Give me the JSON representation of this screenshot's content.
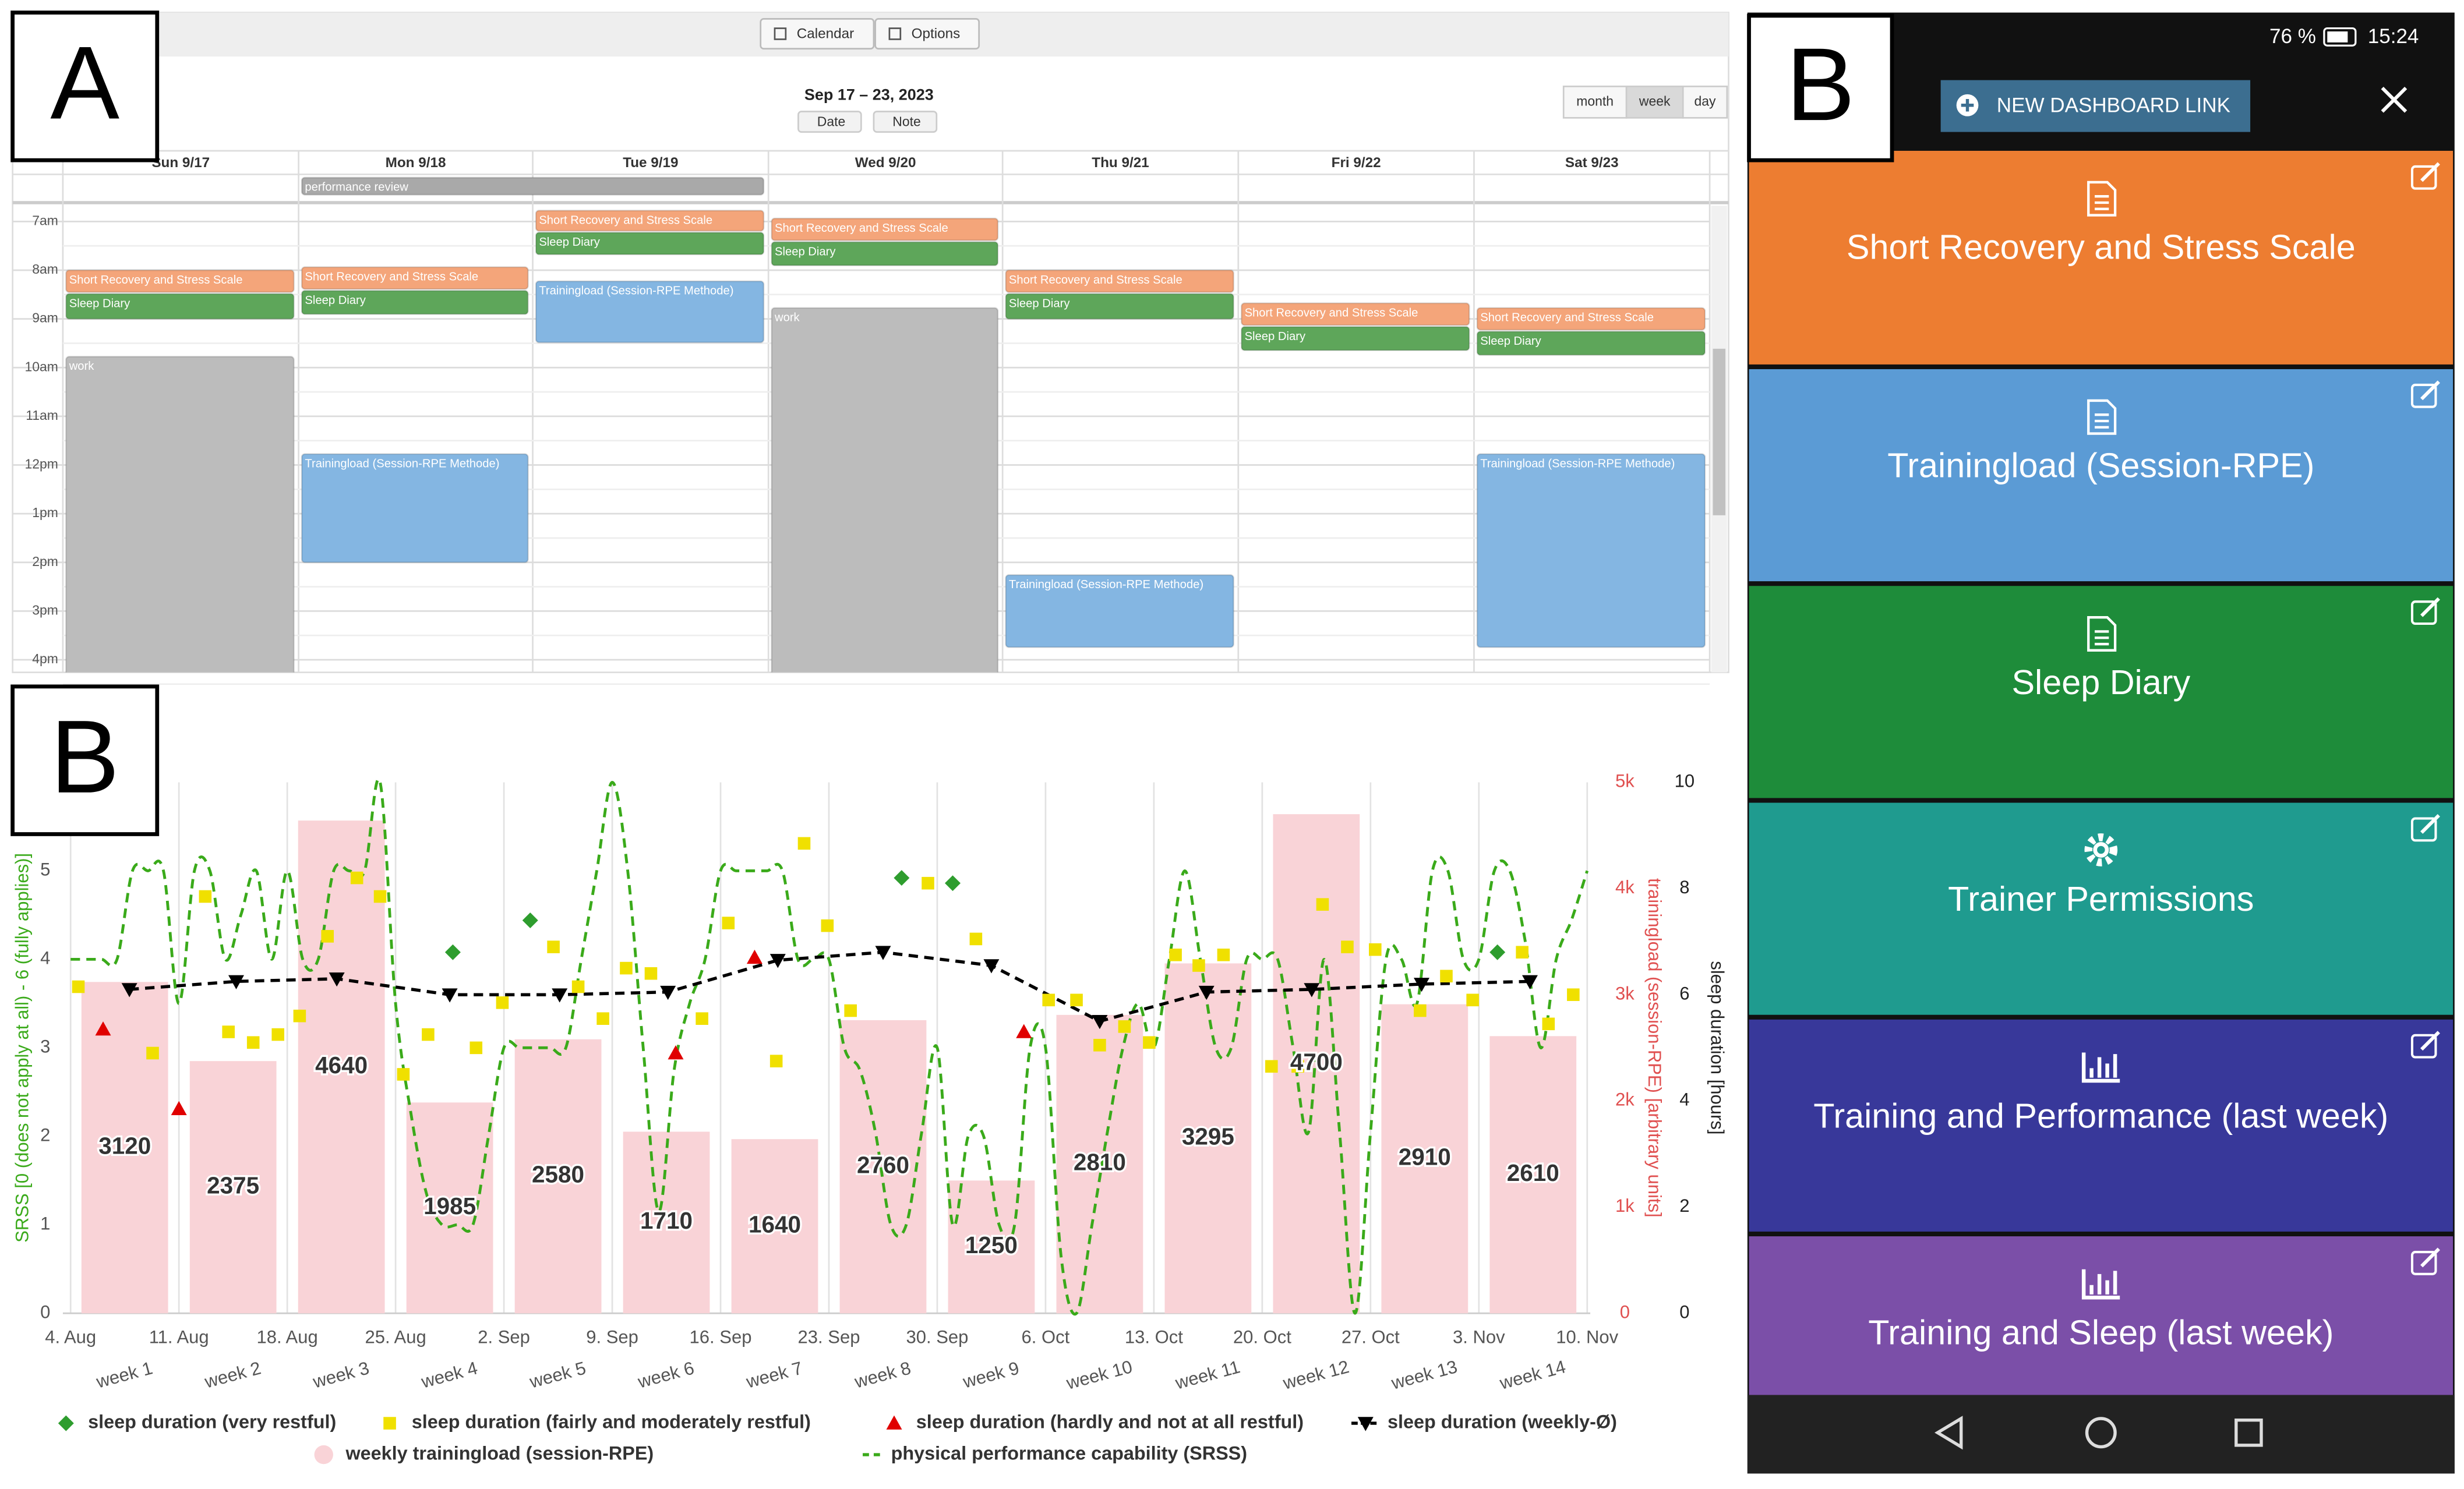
{
  "panel_labels": [
    "A",
    "B",
    "B"
  ],
  "calendar": {
    "toolbar": [
      "Calendar",
      "Options"
    ],
    "range": "Sep 17 – 23, 2023",
    "buttons": [
      "Date",
      "Note"
    ],
    "views": [
      "month",
      "week",
      "day"
    ],
    "days": [
      "Sun 9/17",
      "Mon 9/18",
      "Tue 9/19",
      "Wed 9/20",
      "Thu 9/21",
      "Fri 9/22",
      "Sat 9/23"
    ],
    "times": [
      "7am",
      "8am",
      "9am",
      "10am",
      "11am",
      "12pm",
      "1pm",
      "2pm",
      "3pm",
      "4pm"
    ],
    "events": [
      {
        "label": "performance review",
        "color": "#a9a9a9"
      },
      {
        "label": "Short Recovery and Stress Scale",
        "color": "#f4a57a"
      },
      {
        "label": "Sleep Diary",
        "color": "#5ea65a"
      },
      {
        "label": "work",
        "color": "#bcbcbc"
      },
      {
        "label": "Short Recovery and Stress Scale",
        "color": "#f4a57a"
      },
      {
        "label": "Sleep Diary",
        "color": "#5ea65a"
      },
      {
        "label": "Trainingload (Session-RPE Methode)",
        "color": "#84b6e2"
      },
      {
        "label": "Short Recovery and Stress Scale",
        "color": "#f4a57a"
      },
      {
        "label": "Sleep Diary",
        "color": "#5ea65a"
      },
      {
        "label": "Trainingload (Session-RPE Methode)",
        "color": "#84b6e2"
      },
      {
        "label": "Short Recovery and Stress Scale",
        "color": "#f4a57a"
      },
      {
        "label": "Sleep Diary",
        "color": "#5ea65a"
      },
      {
        "label": "work",
        "color": "#bcbcbc"
      },
      {
        "label": "Short Recovery and Stress Scale",
        "color": "#f4a57a"
      },
      {
        "label": "Sleep Diary",
        "color": "#5ea65a"
      },
      {
        "label": "Trainingload (Session-RPE Methode)",
        "color": "#84b6e2"
      },
      {
        "label": "Short Recovery and Stress Scale",
        "color": "#f4a57a"
      },
      {
        "label": "Sleep Diary",
        "color": "#5ea65a"
      },
      {
        "label": "Short Recovery and Stress Scale",
        "color": "#f4a57a"
      },
      {
        "label": "Sleep Diary",
        "color": "#5ea65a"
      },
      {
        "label": "Trainingload (Session-RPE Methode)",
        "color": "#84b6e2"
      }
    ]
  },
  "phone": {
    "battery": "76 %",
    "time": "15:24",
    "button": "NEW DASHBOARD LINK",
    "tiles": [
      {
        "label": "Short Recovery and Stress Scale",
        "color": "#ed7d31"
      },
      {
        "label": "Trainingload (Session-RPE)",
        "color": "#5b9bd5"
      },
      {
        "label": "Sleep Diary",
        "color": "#1e8c3a"
      },
      {
        "label": "Trainer Permissions",
        "color": "#1f9b8f"
      },
      {
        "label": "Training and Performance (last week)",
        "color": "#38389a"
      },
      {
        "label": "Training and Sleep (last week)",
        "color": "#7b4fa8"
      }
    ]
  },
  "chart_data": {
    "type": "combo",
    "ylabel": "SRSS [0 (does not apply at all) - 6 (fully applies)]",
    "y2label": "trainingload (session-RPE) [arbitrary units]",
    "y3label": "sleep duration [hours]",
    "ylim": [
      0,
      6
    ],
    "yticks": [
      0,
      1,
      2,
      3,
      4,
      5
    ],
    "y2lim": [
      0,
      5000
    ],
    "y2ticks": [
      0,
      {
        "value": 1000,
        "label": "1k"
      },
      {
        "value": 2000,
        "label": "2k"
      },
      {
        "value": 3000,
        "label": "3k"
      },
      {
        "value": 4000,
        "label": "4k"
      },
      {
        "value": 5000,
        "label": "5k"
      }
    ],
    "y3lim": [
      0,
      10
    ],
    "y3ticks": [
      0,
      2,
      4,
      6,
      8,
      10
    ],
    "xlim": [
      -0.5,
      98.2
    ],
    "xticks": [
      {
        "value": 0,
        "label": "4. Aug"
      },
      {
        "value": 7,
        "label": "11. Aug"
      },
      {
        "value": 14,
        "label": "18. Aug"
      },
      {
        "value": 21,
        "label": "25. Aug"
      },
      {
        "value": 28,
        "label": "2. Sep"
      },
      {
        "value": 35,
        "label": "9. Sep"
      },
      {
        "value": 42,
        "label": "16. Sep"
      },
      {
        "value": 49,
        "label": "23. Sep"
      },
      {
        "value": 56,
        "label": "30. Sep"
      },
      {
        "value": 63,
        "label": "6. Oct"
      },
      {
        "value": 70,
        "label": "13. Oct"
      },
      {
        "value": 77,
        "label": "20. Oct"
      },
      {
        "value": 84,
        "label": "27. Oct"
      },
      {
        "value": 91,
        "label": "3. Nov"
      },
      {
        "value": 98,
        "label": "10. Nov"
      }
    ],
    "grid": true,
    "categories": [
      "week 1",
      "week 2",
      "week 3",
      "week 4",
      "week 5",
      "week 6",
      "week 7",
      "week 8",
      "week 9",
      "week 10",
      "week 11",
      "week 12",
      "week 13",
      "week 14"
    ],
    "series": [
      {
        "name": "sleep duration (very restful)",
        "color": "#2e9d2e",
        "marker": "diamond",
        "axis": "y3",
        "x": [
          24.7,
          29.7,
          53.7,
          57.0,
          92.2
        ],
        "values": [
          6.8,
          7.4,
          8.2,
          8.1,
          6.8
        ]
      },
      {
        "name": "sleep duration (fairly and moderately restful)",
        "color": "#f0e000",
        "marker": "square",
        "axis": "y3",
        "x": [
          0.5,
          5.3,
          8.7,
          10.2,
          11.8,
          13.4,
          14.8,
          16.6,
          18.5,
          20.0,
          21.5,
          23.1,
          26.2,
          27.9,
          31.2,
          32.8,
          34.4,
          35.9,
          37.5,
          40.8,
          42.5,
          45.6,
          47.4,
          48.9,
          50.4,
          55.4,
          58.5,
          63.2,
          65.0,
          66.5,
          68.1,
          69.7,
          71.4,
          72.9,
          74.5,
          77.6,
          79.3,
          80.9,
          82.5,
          84.3,
          87.2,
          88.9,
          90.6,
          93.8,
          95.5,
          97.1
        ],
        "values": [
          6.15,
          4.9,
          7.85,
          5.3,
          5.1,
          5.25,
          5.6,
          7.1,
          8.2,
          7.85,
          4.5,
          5.25,
          5.0,
          5.85,
          6.9,
          6.15,
          5.55,
          6.5,
          6.4,
          5.55,
          7.35,
          4.75,
          8.85,
          7.3,
          5.7,
          8.1,
          7.05,
          5.9,
          5.9,
          5.05,
          5.4,
          5.1,
          6.75,
          6.55,
          6.75,
          4.65,
          4.65,
          7.7,
          6.9,
          6.85,
          5.7,
          6.35,
          5.9,
          6.8,
          5.45,
          6.0
        ]
      },
      {
        "name": "sleep duration (hardly and not at all restful)",
        "color": "#e00000",
        "marker": "triangle",
        "axis": "y3",
        "x": [
          2.1,
          7.0,
          39.1,
          44.2,
          61.6
        ],
        "values": [
          5.35,
          3.85,
          4.9,
          6.7,
          5.3
        ]
      },
      {
        "name": "sleep duration (weekly-Ø)",
        "color": "#000000",
        "marker": "triangle-down",
        "line": "dashed",
        "axis": "y3",
        "x": [
          3.8,
          10.7,
          17.2,
          24.5,
          31.6,
          38.6,
          45.7,
          52.5,
          59.5,
          66.5,
          73.4,
          80.2,
          87.3,
          94.3
        ],
        "values": [
          6.1,
          6.25,
          6.3,
          6.0,
          6.0,
          6.05,
          6.65,
          6.8,
          6.55,
          5.5,
          6.05,
          6.1,
          6.2,
          6.25
        ]
      },
      {
        "name": "weekly trainingload (session-RPE)",
        "color": "#f9d3d7",
        "marker": "bar",
        "axis": "y2",
        "values": [
          3120,
          2375,
          4640,
          1985,
          2580,
          1710,
          1640,
          2760,
          1250,
          2810,
          3295,
          4700,
          2910,
          2610
        ]
      },
      {
        "name": "physical performance capability (SRSS)",
        "color": "#3aaa1a",
        "marker": "none",
        "line": "dashed",
        "axis": "y",
        "x": [
          0,
          1,
          2,
          3,
          4,
          5,
          6,
          7,
          8,
          9,
          10,
          11,
          12,
          13,
          14,
          15,
          16,
          17,
          18,
          19,
          20,
          21,
          22,
          23,
          24,
          25,
          26,
          27,
          28,
          29,
          30,
          31,
          32,
          33,
          34,
          35,
          36,
          37,
          38,
          39,
          40,
          41,
          42,
          43,
          44,
          45,
          46,
          47,
          48,
          49,
          50,
          51,
          52,
          53,
          54,
          55,
          56,
          57,
          58,
          59,
          60,
          61,
          62,
          63,
          64,
          65,
          66,
          67,
          68,
          69,
          70,
          71,
          72,
          73,
          74,
          75,
          76,
          77,
          78,
          79,
          80,
          81,
          82,
          83,
          84,
          85,
          86,
          87,
          88,
          89,
          90,
          91,
          92,
          93,
          94,
          95,
          96,
          97,
          98
        ],
        "values": [
          4.0,
          4.0,
          4.0,
          4.0,
          5.0,
          5.0,
          5.0,
          3.5,
          5.0,
          5.0,
          4.0,
          4.5,
          5.0,
          4.0,
          5.0,
          4.0,
          4.0,
          5.0,
          5.0,
          5.0,
          6.0,
          3.5,
          2.25,
          1.35,
          1.0,
          1.0,
          1.0,
          2.0,
          3.0,
          3.0,
          3.0,
          3.0,
          3.0,
          4.0,
          5.0,
          6.0,
          5.0,
          3.0,
          1.15,
          2.75,
          3.5,
          4.0,
          5.0,
          5.0,
          5.0,
          5.0,
          5.0,
          4.0,
          4.0,
          4.0,
          3.0,
          2.75,
          2.05,
          1.0,
          1.0,
          2.05,
          3.0,
          1.0,
          2.0,
          2.0,
          1.0,
          1.0,
          3.0,
          3.0,
          0.65,
          0,
          1.0,
          2.05,
          3.0,
          3.5,
          3.0,
          4.0,
          5.0,
          4.0,
          3.0,
          3.0,
          4.0,
          4.0,
          4.0,
          3.0,
          2.05,
          4.0,
          2.05,
          0,
          2.05,
          4.0,
          4.0,
          3.5,
          5.0,
          5.0,
          4.0,
          4.0,
          5.0,
          5.0,
          4.2,
          3.0,
          4.0,
          4.45,
          5.0
        ]
      }
    ]
  }
}
